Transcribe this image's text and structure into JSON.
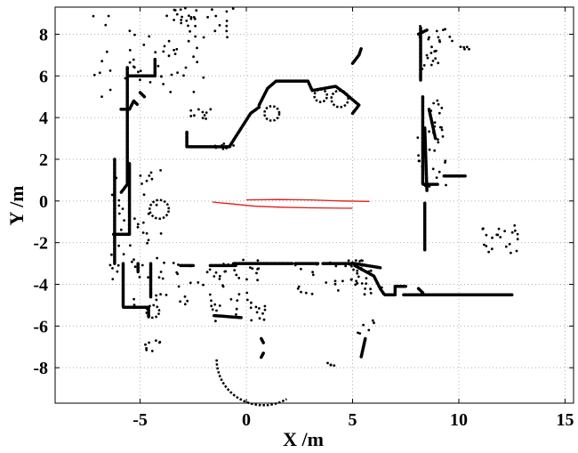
{
  "chart_data": {
    "type": "scatter",
    "title": "",
    "xlabel": "X /m",
    "ylabel": "Y /m",
    "xlim": [
      -9,
      15.4
    ],
    "ylim": [
      -9.7,
      9.3
    ],
    "xticks": [
      -5,
      0,
      5,
      10,
      15
    ],
    "yticks": [
      -8,
      -6,
      -4,
      -2,
      0,
      2,
      4,
      6,
      8
    ],
    "grid": true,
    "legend": "none",
    "series": [
      {
        "kind": "points",
        "color": "#000000",
        "segments": [
          [
            [
              -2.7,
              2.6
            ],
            [
              -0.8,
              2.6
            ],
            [
              0.2,
              4.2
            ],
            [
              0.6,
              4.5
            ]
          ],
          [
            [
              0.6,
              4.6
            ],
            [
              1.0,
              5.4
            ],
            [
              1.4,
              5.75
            ],
            [
              2.9,
              5.75
            ],
            [
              3.1,
              5.3
            ],
            [
              4.2,
              5.5
            ],
            [
              4.6,
              5.2
            ],
            [
              5.3,
              4.6
            ],
            [
              5.0,
              4.2
            ]
          ],
          [
            [
              -2.8,
              2.6
            ],
            [
              -2.8,
              3.3
            ]
          ],
          [
            [
              -6.2,
              2.0
            ],
            [
              -6.2,
              -3.0
            ]
          ],
          [
            [
              -5.6,
              6.4
            ],
            [
              -5.6,
              0.8
            ],
            [
              -5.9,
              0.4
            ]
          ],
          [
            [
              -5.5,
              1.8
            ],
            [
              -5.5,
              -1.6
            ],
            [
              -6.3,
              -1.6
            ]
          ],
          [
            [
              -5.5,
              6.0
            ],
            [
              -4.3,
              6.0
            ],
            [
              -4.3,
              6.8
            ]
          ],
          [
            [
              -5.8,
              -3.0
            ],
            [
              -5.8,
              -5.1
            ],
            [
              -4.6,
              -5.1
            ],
            [
              -4.6,
              -5.6
            ]
          ],
          [
            [
              -5.1,
              -3.0
            ],
            [
              -5.1,
              -3.4
            ]
          ],
          [
            [
              -4.5,
              -3.0
            ],
            [
              -4.5,
              -4.6
            ]
          ],
          [
            [
              -3.1,
              -3.1
            ],
            [
              -2.5,
              -3.1
            ]
          ],
          [
            [
              -1.7,
              -3.1
            ],
            [
              -0.5,
              -3.1
            ]
          ],
          [
            [
              -0.6,
              -3.0
            ],
            [
              2.2,
              -3.0
            ]
          ],
          [
            [
              2.3,
              -3.0
            ],
            [
              3.4,
              -3.0
            ]
          ],
          [
            [
              3.6,
              -3.0
            ],
            [
              5.1,
              -3.0
            ],
            [
              6.3,
              -3.2
            ]
          ],
          [
            [
              5.1,
              -3.1
            ],
            [
              6.0,
              -3.6
            ],
            [
              6.3,
              -4.2
            ],
            [
              6.5,
              -4.5
            ],
            [
              7.0,
              -4.5
            ],
            [
              7.0,
              -4.1
            ],
            [
              7.5,
              -4.1
            ]
          ],
          [
            [
              7.4,
              -4.5
            ],
            [
              12.5,
              -4.5
            ]
          ],
          [
            [
              8.1,
              -4.2
            ],
            [
              8.3,
              -4.4
            ]
          ],
          [
            [
              8.2,
              8.3
            ],
            [
              8.2,
              5.8
            ]
          ],
          [
            [
              8.3,
              5.0
            ],
            [
              8.3,
              0.8
            ],
            [
              9.0,
              0.8
            ]
          ],
          [
            [
              8.6,
              4.4
            ],
            [
              8.9,
              3.0
            ]
          ],
          [
            [
              8.4,
              3.5
            ],
            [
              8.5,
              0.5
            ]
          ],
          [
            [
              8.4,
              -0.1
            ],
            [
              8.4,
              -2.4
            ]
          ],
          [
            [
              9.3,
              1.2
            ],
            [
              10.3,
              1.2
            ]
          ],
          [
            [
              5.4,
              7.3
            ],
            [
              5.3,
              7.0
            ],
            [
              5.0,
              6.6
            ]
          ],
          [
            [
              8.5,
              8.2
            ],
            [
              8.1,
              8.0
            ]
          ],
          [
            [
              -5.9,
              4.4
            ],
            [
              -5.5,
              4.4
            ],
            [
              -5.3,
              4.8
            ],
            [
              -5.1,
              4.6
            ]
          ],
          [
            [
              -5.0,
              5.2
            ],
            [
              -4.8,
              5.0
            ]
          ],
          [
            [
              -1.5,
              -5.5
            ],
            [
              -0.2,
              -5.6
            ]
          ],
          [
            [
              0.7,
              -6.6
            ],
            [
              0.8,
              -6.8
            ]
          ],
          [
            [
              0.8,
              -7.3
            ],
            [
              0.7,
              -7.5
            ]
          ],
          [
            [
              5.6,
              -6.6
            ],
            [
              5.4,
              -7.5
            ]
          ]
        ],
        "arcs": [
          {
            "cx": 0.8,
            "cy": -7.6,
            "r": 2.2,
            "start_deg": 180,
            "end_deg": 300
          },
          {
            "cx": -4.1,
            "cy": -0.4,
            "r": 0.45,
            "start_deg": 0,
            "end_deg": 360
          },
          {
            "cx": 1.2,
            "cy": 4.2,
            "r": 0.35,
            "start_deg": 0,
            "end_deg": 360
          },
          {
            "cx": 3.5,
            "cy": 5.05,
            "r": 0.3,
            "start_deg": 0,
            "end_deg": 360
          },
          {
            "cx": 4.4,
            "cy": 4.9,
            "r": 0.4,
            "start_deg": 0,
            "end_deg": 360
          },
          {
            "cx": -4.4,
            "cy": -5.3,
            "r": 0.3,
            "start_deg": 0,
            "end_deg": 360
          },
          {
            "cx": 5.2,
            "cy": -3.1,
            "r": 0.25,
            "start_deg": 0,
            "end_deg": 360
          }
        ],
        "clusters": [
          {
            "x": [
              -7.2,
              -2.0
            ],
            "y": [
              5.0,
              9.2
            ],
            "n": 55
          },
          {
            "x": [
              -3.4,
              -0.6
            ],
            "y": [
              7.8,
              9.3
            ],
            "n": 25
          },
          {
            "x": [
              -6.5,
              -4.0
            ],
            "y": [
              -3.8,
              1.5
            ],
            "n": 45
          },
          {
            "x": [
              -5.3,
              0.8
            ],
            "y": [
              -5.0,
              -2.8
            ],
            "n": 55
          },
          {
            "x": [
              -1.8,
              1.0
            ],
            "y": [
              -5.0,
              -5.8
            ],
            "n": 18
          },
          {
            "x": [
              2.3,
              6.4
            ],
            "y": [
              -4.5,
              -2.8
            ],
            "n": 45
          },
          {
            "x": [
              8.0,
              9.8
            ],
            "y": [
              6.2,
              8.8
            ],
            "n": 25
          },
          {
            "x": [
              8.0,
              9.4
            ],
            "y": [
              0.6,
              4.9
            ],
            "n": 35
          },
          {
            "x": [
              11.1,
              12.8
            ],
            "y": [
              -2.5,
              -1.1
            ],
            "n": 22
          },
          {
            "x": [
              -2.8,
              -1.6
            ],
            "y": [
              3.9,
              4.4
            ],
            "n": 10
          },
          {
            "x": [
              -1.6,
              -0.6
            ],
            "y": [
              2.5,
              2.8
            ],
            "n": 8
          },
          {
            "x": [
              3.8,
              4.2
            ],
            "y": [
              -7.9,
              -7.7
            ],
            "n": 4
          },
          {
            "x": [
              -4.8,
              -4.0
            ],
            "y": [
              -7.2,
              -6.6
            ],
            "n": 8
          },
          {
            "x": [
              5.0,
              6.4
            ],
            "y": [
              -6.6,
              -5.6
            ],
            "n": 6
          },
          {
            "x": [
              9.8,
              10.6
            ],
            "y": [
              7.2,
              7.4
            ],
            "n": 5
          }
        ]
      },
      {
        "kind": "line",
        "color": "#e31a1c",
        "lines": [
          [
            [
              -1.6,
              -0.05
            ],
            [
              -0.6,
              -0.15
            ],
            [
              0.4,
              -0.25
            ],
            [
              1.6,
              -0.3
            ],
            [
              3.0,
              -0.33
            ],
            [
              5.0,
              -0.35
            ]
          ],
          [
            [
              0.0,
              0.05
            ],
            [
              1.5,
              0.07
            ],
            [
              3.0,
              0.05
            ],
            [
              4.5,
              0.0
            ],
            [
              5.8,
              -0.02
            ]
          ]
        ]
      }
    ]
  }
}
